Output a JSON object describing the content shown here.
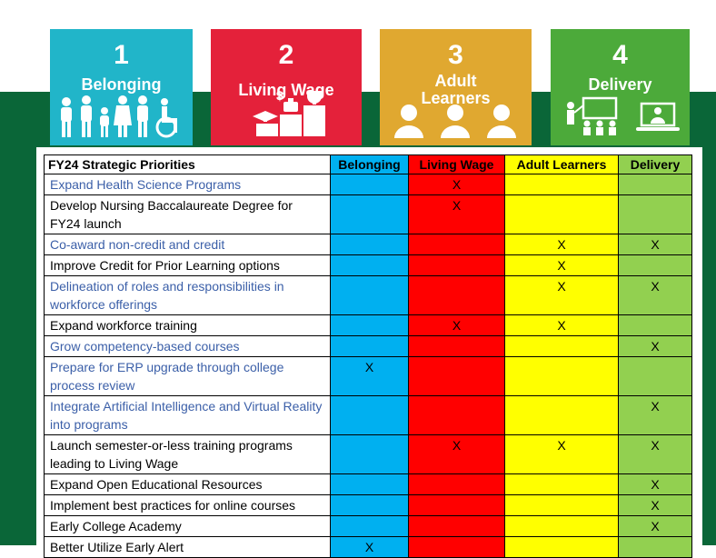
{
  "tiles": [
    {
      "number": "1",
      "label": "Belonging",
      "color": "#21b5c9",
      "icon": "people-icon"
    },
    {
      "number": "2",
      "label": "Living Wage",
      "color": "#e4213a",
      "icon": "wage-icon"
    },
    {
      "number": "3",
      "label": "Adult Learners",
      "color": "#e0a830",
      "icon": "adult-learners-icon"
    },
    {
      "number": "4",
      "label": "Delivery",
      "color": "#4caa3a",
      "icon": "delivery-icon"
    }
  ],
  "table": {
    "headers": [
      "FY24 Strategic Priorities",
      "Belonging",
      "Living Wage",
      "Adult Learners",
      "Delivery"
    ],
    "colors": {
      "belonging": "#00b0f0",
      "living_wage": "#ff0000",
      "adult_learners": "#ffff00",
      "delivery": "#92d050"
    },
    "rows": [
      {
        "priority": "Expand Health Science Programs",
        "blue": true,
        "belonging": "",
        "living_wage": "X",
        "adult_learners": "",
        "delivery": ""
      },
      {
        "priority": "Develop Nursing Baccalaureate Degree for FY24 launch",
        "blue": false,
        "belonging": "",
        "living_wage": "X",
        "adult_learners": "",
        "delivery": ""
      },
      {
        "priority": "Co-award non-credit and credit",
        "blue": true,
        "belonging": "",
        "living_wage": "",
        "adult_learners": "X",
        "delivery": "X"
      },
      {
        "priority": "Improve Credit for Prior Learning options",
        "blue": false,
        "belonging": "",
        "living_wage": "",
        "adult_learners": "X",
        "delivery": ""
      },
      {
        "priority": "Delineation of roles and responsibilities in workforce offerings",
        "blue": true,
        "belonging": "",
        "living_wage": "",
        "adult_learners": "X",
        "delivery": "X"
      },
      {
        "priority": "Expand workforce training",
        "blue": false,
        "belonging": "",
        "living_wage": "X",
        "adult_learners": "X",
        "delivery": ""
      },
      {
        "priority": "Grow competency-based courses",
        "blue": true,
        "belonging": "",
        "living_wage": "",
        "adult_learners": "",
        "delivery": "X"
      },
      {
        "priority": "Prepare for ERP upgrade through college process review",
        "blue": true,
        "belonging": "X",
        "living_wage": "",
        "adult_learners": "",
        "delivery": ""
      },
      {
        "priority": "Integrate Artificial Intelligence and Virtual Reality into programs",
        "blue": true,
        "belonging": "",
        "living_wage": "",
        "adult_learners": "",
        "delivery": "X"
      },
      {
        "priority": "Launch semester-or-less training programs leading to Living Wage",
        "blue": false,
        "belonging": "",
        "living_wage": "X",
        "adult_learners": "X",
        "delivery": "X"
      },
      {
        "priority": "Expand Open Educational Resources",
        "blue": false,
        "belonging": "",
        "living_wage": "",
        "adult_learners": "",
        "delivery": "X"
      },
      {
        "priority": "Implement best practices for online courses",
        "blue": false,
        "belonging": "",
        "living_wage": "",
        "adult_learners": "",
        "delivery": "X"
      },
      {
        "priority": "Early College Academy",
        "blue": false,
        "belonging": "",
        "living_wage": "",
        "adult_learners": "",
        "delivery": "X"
      },
      {
        "priority": "Better Utilize Early Alert",
        "blue": false,
        "belonging": "X",
        "living_wage": "",
        "adult_learners": "",
        "delivery": ""
      }
    ]
  }
}
